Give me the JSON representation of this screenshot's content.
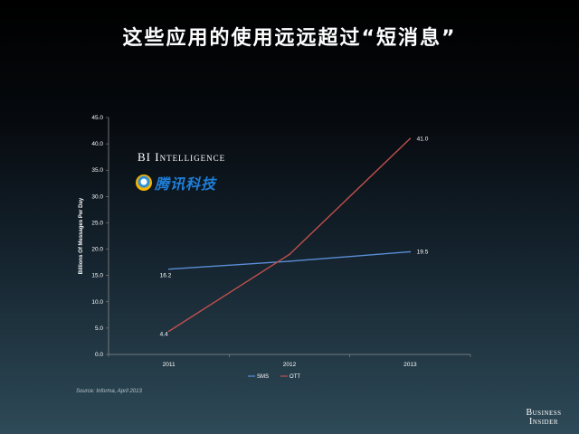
{
  "slide": {
    "title": "这些应用的使用远远超过“短消息”",
    "source": "Source: Informa, April 2013",
    "bi_intelligence": "BI Intelligence",
    "tencent_text": "腾讯科技",
    "business_insider_line1": "Business",
    "business_insider_line2": "Insider"
  },
  "chart_data": {
    "type": "line",
    "title": "",
    "xlabel": "",
    "ylabel": "Billions Of Messages Per Day",
    "x": [
      "2011",
      "2012",
      "2013"
    ],
    "ylim": [
      0,
      45
    ],
    "y_ticks": [
      "0.0",
      "5.0",
      "10.0",
      "15.0",
      "20.0",
      "25.0",
      "30.0",
      "35.0",
      "40.0",
      "45.0"
    ],
    "grid": false,
    "legend_position": "bottom",
    "series": [
      {
        "name": "SMS",
        "values": [
          16.2,
          17.7,
          19.5
        ],
        "labels": [
          "16.2",
          "",
          "19.5"
        ],
        "color": "#5b8ed6"
      },
      {
        "name": "OTT",
        "values": [
          4.4,
          19.0,
          41.0
        ],
        "labels": [
          "4.4",
          "",
          "41.0"
        ],
        "color": "#c0504d"
      }
    ]
  }
}
